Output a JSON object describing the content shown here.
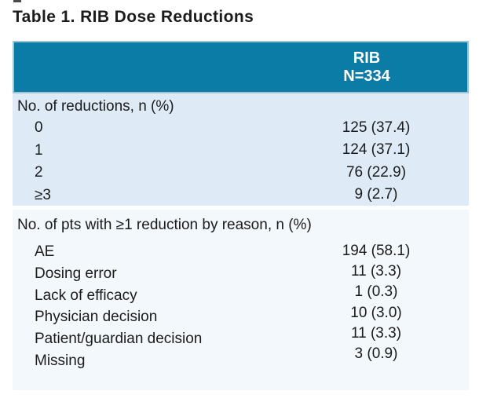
{
  "title": "Table 1. RIB Dose Reductions",
  "table": {
    "column_header": {
      "line1": "RIB",
      "line2": "N=334"
    },
    "sections": [
      {
        "header": "No. of reductions, n (%)",
        "rows": [
          {
            "label": "0",
            "value": "125 (37.4)"
          },
          {
            "label": "1",
            "value": "124 (37.1)"
          },
          {
            "label": "2",
            "value": "76 (22.9)"
          },
          {
            "label": "≥3",
            "value": "9 (2.7)"
          }
        ]
      },
      {
        "header": "No. of pts with ≥1 reduction by reason, n (%)",
        "rows": [
          {
            "label": "AE",
            "value": "194 (58.1)"
          },
          {
            "label": "Dosing error",
            "value": "11 (3.3)"
          },
          {
            "label": "Lack of efficacy",
            "value": "1 (0.3)"
          },
          {
            "label": "Physician decision",
            "value": "10 (3.0)"
          },
          {
            "label": "Patient/guardian decision",
            "value": "11 (3.3)"
          },
          {
            "label": "Missing",
            "value": "3 (0.9)"
          }
        ]
      }
    ]
  },
  "colors": {
    "header_bg": "#0a7ca6",
    "header_border": "#9dc5d3",
    "header_text": "#ffffff",
    "section1_bg": "#deebf7",
    "section2_bg": "#f3f8fc",
    "divider": "#ffffff",
    "text": "#1b1b1b"
  }
}
